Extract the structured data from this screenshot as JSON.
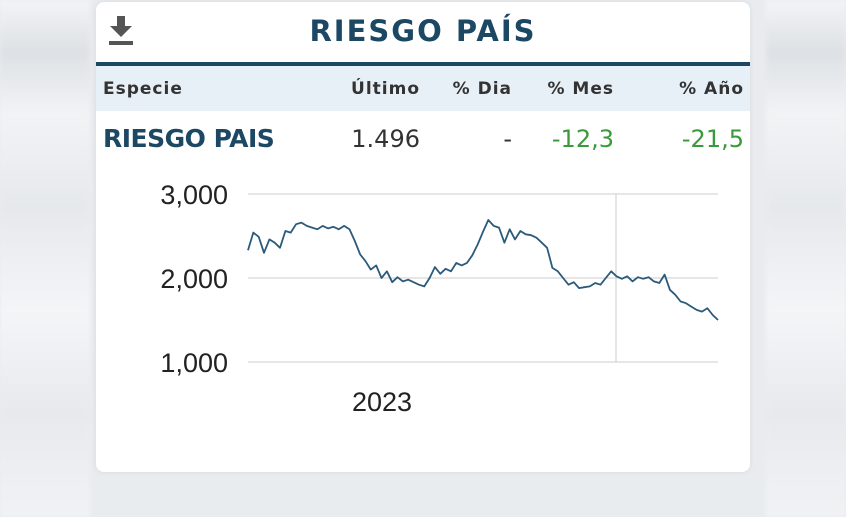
{
  "widget": {
    "title": "RIESGO PAÍS",
    "download_icon": "download-icon"
  },
  "table": {
    "headers": [
      "Especie",
      "Último",
      "% Dia",
      "% Mes",
      "% Año"
    ],
    "row": {
      "especie": "RIESGO PAIS",
      "ultimo": "1.496",
      "dia": "-",
      "mes": "-12,3",
      "anio": "-21,5"
    },
    "negative_color": "#3a9a3a"
  },
  "chart_data": {
    "type": "line",
    "title": "",
    "xlabel": "",
    "ylabel": "",
    "ylim": [
      1000,
      3000
    ],
    "yticks": [
      "3,000",
      "2,000",
      "1,000"
    ],
    "ytick_values": [
      3000,
      2000,
      1000
    ],
    "xtick_label": "2023",
    "line_color": "#2b5a7a",
    "grid": true,
    "series": [
      {
        "values": [
          2330,
          2540,
          2490,
          2300,
          2460,
          2420,
          2360,
          2560,
          2540,
          2640,
          2660,
          2620,
          2600,
          2580,
          2620,
          2590,
          2610,
          2580,
          2620,
          2580,
          2440,
          2280,
          2200,
          2100,
          2150,
          2000,
          2080,
          1950,
          2010,
          1960,
          1980,
          1950,
          1920,
          1900,
          2000,
          2130,
          2050,
          2110,
          2080,
          2180,
          2150,
          2180,
          2270,
          2400,
          2550,
          2690,
          2620,
          2600,
          2420,
          2580,
          2460,
          2560,
          2520,
          2510,
          2480,
          2420,
          2360,
          2120,
          2080,
          2000,
          1920,
          1950,
          1880,
          1890,
          1900,
          1940,
          1920,
          2000,
          2080,
          2020,
          1990,
          2020,
          1960,
          2010,
          1990,
          2010,
          1960,
          1940,
          2040,
          1860,
          1800,
          1720,
          1700,
          1660,
          1620,
          1600,
          1640,
          1560,
          1500
        ]
      }
    ]
  }
}
